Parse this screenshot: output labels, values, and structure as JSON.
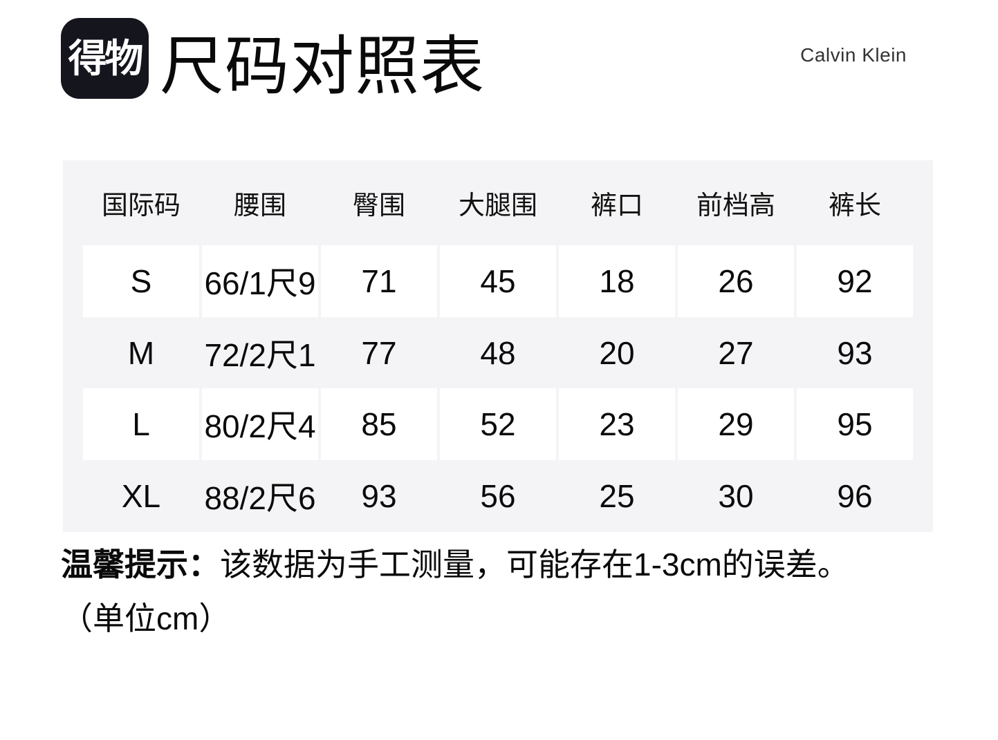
{
  "header": {
    "logo_text": "得物",
    "title": "尺码对照表",
    "brand": "Calvin Klein"
  },
  "table": {
    "columns": [
      "国际码",
      "腰围",
      "臀围",
      "大腿围",
      "裤口",
      "前档高",
      "裤长"
    ],
    "rows": [
      [
        "S",
        "66/1尺9",
        "71",
        "45",
        "18",
        "26",
        "92"
      ],
      [
        "M",
        "72/2尺1",
        "77",
        "48",
        "20",
        "27",
        "93"
      ],
      [
        "L",
        "80/2尺4",
        "85",
        "52",
        "23",
        "29",
        "95"
      ],
      [
        "XL",
        "88/2尺6",
        "93",
        "56",
        "25",
        "30",
        "96"
      ]
    ]
  },
  "notes": {
    "label": "温馨提示：",
    "text": "该数据为手工测量，可能存在1-3cm的误差。",
    "unit": "（单位cm）"
  },
  "colors": {
    "page_bg": "#ffffff",
    "table_bg": "#f4f4f6",
    "cell_bg": "#ffffff",
    "text": "#111111",
    "logo_bg": "#15151d",
    "logo_text": "#ffffff",
    "brand_text": "#333333"
  }
}
